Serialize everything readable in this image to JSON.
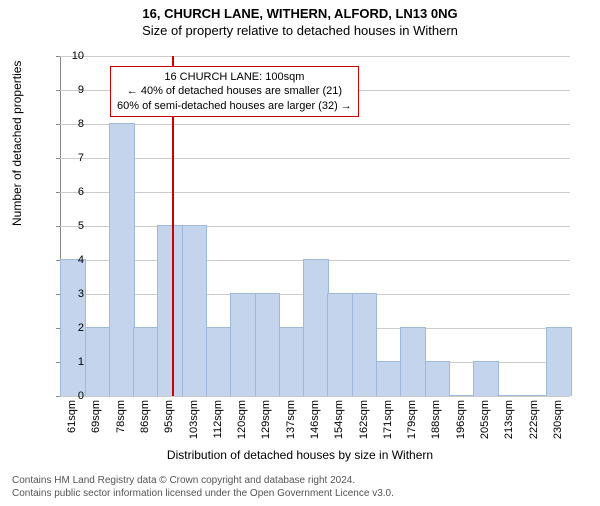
{
  "title_main": "16, CHURCH LANE, WITHERN, ALFORD, LN13 0NG",
  "title_sub": "Size of property relative to detached houses in Withern",
  "chart": {
    "type": "histogram",
    "ylabel": "Number of detached properties",
    "xlabel": "Distribution of detached houses by size in Withern",
    "ylim": [
      0,
      10
    ],
    "ytick_step": 1,
    "yticks": [
      0,
      1,
      2,
      3,
      4,
      5,
      6,
      7,
      8,
      9,
      10
    ],
    "xticks": [
      "61sqm",
      "69sqm",
      "78sqm",
      "86sqm",
      "95sqm",
      "103sqm",
      "112sqm",
      "120sqm",
      "129sqm",
      "137sqm",
      "146sqm",
      "154sqm",
      "162sqm",
      "171sqm",
      "179sqm",
      "188sqm",
      "196sqm",
      "205sqm",
      "213sqm",
      "222sqm",
      "230sqm"
    ],
    "values": [
      4,
      2,
      8,
      2,
      5,
      5,
      2,
      3,
      3,
      2,
      4,
      3,
      3,
      1,
      2,
      1,
      0,
      1,
      0,
      0,
      2
    ],
    "bar_color": "#c3d4ec",
    "bar_border": "#9fb8dd",
    "grid_color": "#cccccc",
    "background_color": "#ffffff",
    "bar_width_ratio": 0.98,
    "marker": {
      "position_index": 4.6,
      "color": "#cc0000"
    },
    "annotation": {
      "lines": [
        "16 CHURCH LANE: 100sqm",
        "← 40% of detached houses are smaller (21)",
        "60% of semi-detached houses are larger (32) →"
      ],
      "border_color": "#cc0000",
      "fontsize": 11
    }
  },
  "footer": {
    "line1": "Contains HM Land Registry data © Crown copyright and database right 2024.",
    "line2": "Contains public sector information licensed under the Open Government Licence v3.0."
  }
}
